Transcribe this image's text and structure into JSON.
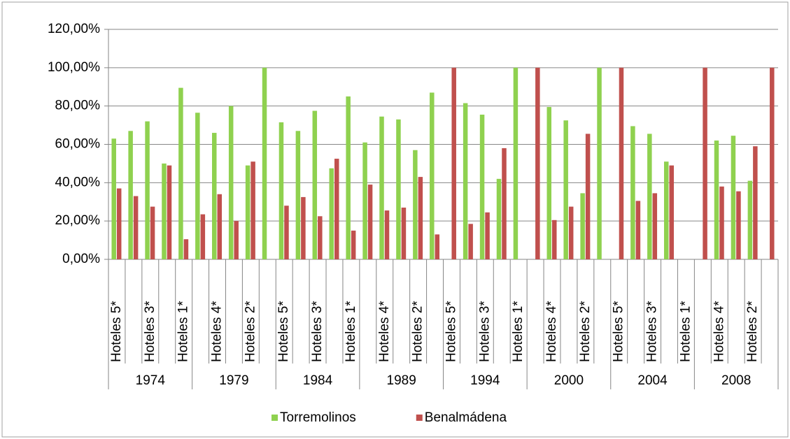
{
  "chart_data": {
    "type": "bar",
    "categories": [
      "Hoteles 5*",
      null,
      "Hoteles 3*",
      null,
      "Hoteles 1*",
      null,
      "Hoteles 4*",
      null,
      "Hoteles 2*",
      null,
      "Hoteles 5*",
      null,
      "Hoteles 3*",
      null,
      "Hoteles 1*",
      null,
      "Hoteles 4*",
      null,
      "Hoteles 2*",
      null,
      "Hoteles 5*",
      null,
      "Hoteles 3*",
      null,
      "Hoteles 1*",
      null,
      "Hoteles 4*",
      null,
      "Hoteles 2*",
      null,
      "Hoteles 5*",
      null,
      "Hoteles 3*",
      null,
      "Hoteles 1*",
      null,
      "Hoteles 4*",
      null,
      "Hoteles 2*",
      null
    ],
    "groups": [
      "1974",
      "1979",
      "1984",
      "1989",
      "1994",
      "2000",
      "2004",
      "2008"
    ],
    "series": [
      {
        "name": "Torremolinos",
        "color": "#8fd14f",
        "values": [
          63,
          67,
          72,
          50,
          89.5,
          76.5,
          66,
          80,
          49,
          100,
          71.5,
          67,
          77.5,
          47.5,
          85,
          61,
          74.5,
          73,
          57,
          87,
          0,
          81.5,
          75.5,
          42,
          100,
          0,
          79.5,
          72.5,
          34.5,
          100,
          0,
          69.5,
          65.5,
          51,
          null,
          0,
          62,
          64.5,
          41,
          0
        ]
      },
      {
        "name": "Benalmádena",
        "color": "#c0504d",
        "values": [
          37,
          33,
          27.5,
          49,
          10.5,
          23.5,
          34,
          20,
          51,
          0,
          28,
          32.5,
          22.5,
          52.5,
          15,
          39,
          25.5,
          27,
          43,
          13,
          100,
          18.5,
          24.5,
          58,
          0,
          100,
          20.5,
          27.5,
          65.5,
          0,
          100,
          30.5,
          34.5,
          49,
          null,
          100,
          38,
          35.5,
          59,
          100
        ]
      }
    ],
    "ylim": [
      0,
      120
    ],
    "yticks": [
      {
        "value": 0,
        "label": "0,00%"
      },
      {
        "value": 20,
        "label": "20,00%"
      },
      {
        "value": 40,
        "label": "40,00%"
      },
      {
        "value": 60,
        "label": "60,00%"
      },
      {
        "value": 80,
        "label": "80,00%"
      },
      {
        "value": 100,
        "label": "100,00%"
      },
      {
        "value": 120,
        "label": "120,00%"
      }
    ],
    "grid": true
  }
}
